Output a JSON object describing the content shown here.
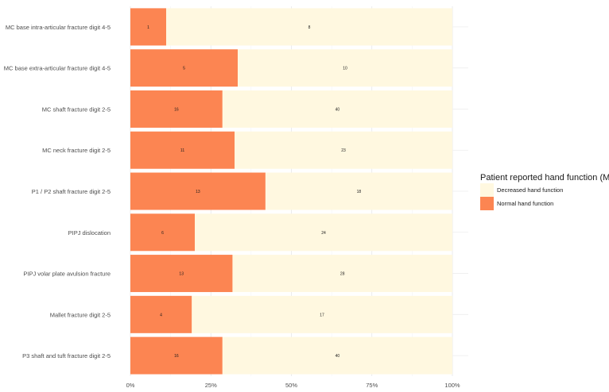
{
  "chart_data": {
    "type": "bar",
    "orientation": "horizontal",
    "stacked": "percent",
    "categories": [
      "MC base intra-articular fracture digit 4-5",
      "MC base extra-articular fracture digit 4-5",
      "MC shaft fracture digit 2-5",
      "MC neck fracture digit 2-5",
      "P1 / P2 shaft fracture digit 2-5",
      "PIPJ dislocation",
      "PIPJ volar plate avulsion fracture",
      "Mallet fracture digit 2-5",
      "P3 shaft and tuft fracture digit 2-5"
    ],
    "series": [
      {
        "name": "Normal hand function",
        "values": [
          1,
          5,
          16,
          11,
          13,
          6,
          13,
          4,
          16
        ],
        "color": "#FC8552"
      },
      {
        "name": "Decreased hand function",
        "values": [
          8,
          10,
          40,
          23,
          18,
          24,
          28,
          17,
          40
        ],
        "color": "#FFF8E0"
      }
    ],
    "xlim": [
      0,
      1
    ],
    "x_ticks": [
      "0%",
      "25%",
      "50%",
      "75%",
      "100%"
    ],
    "legend": {
      "title": "Patient reported hand function (MHQ)",
      "entries": [
        "Decreased hand function",
        "Normal hand function"
      ],
      "position": "right"
    },
    "grid": true,
    "title": "",
    "xlabel": "",
    "ylabel": ""
  }
}
